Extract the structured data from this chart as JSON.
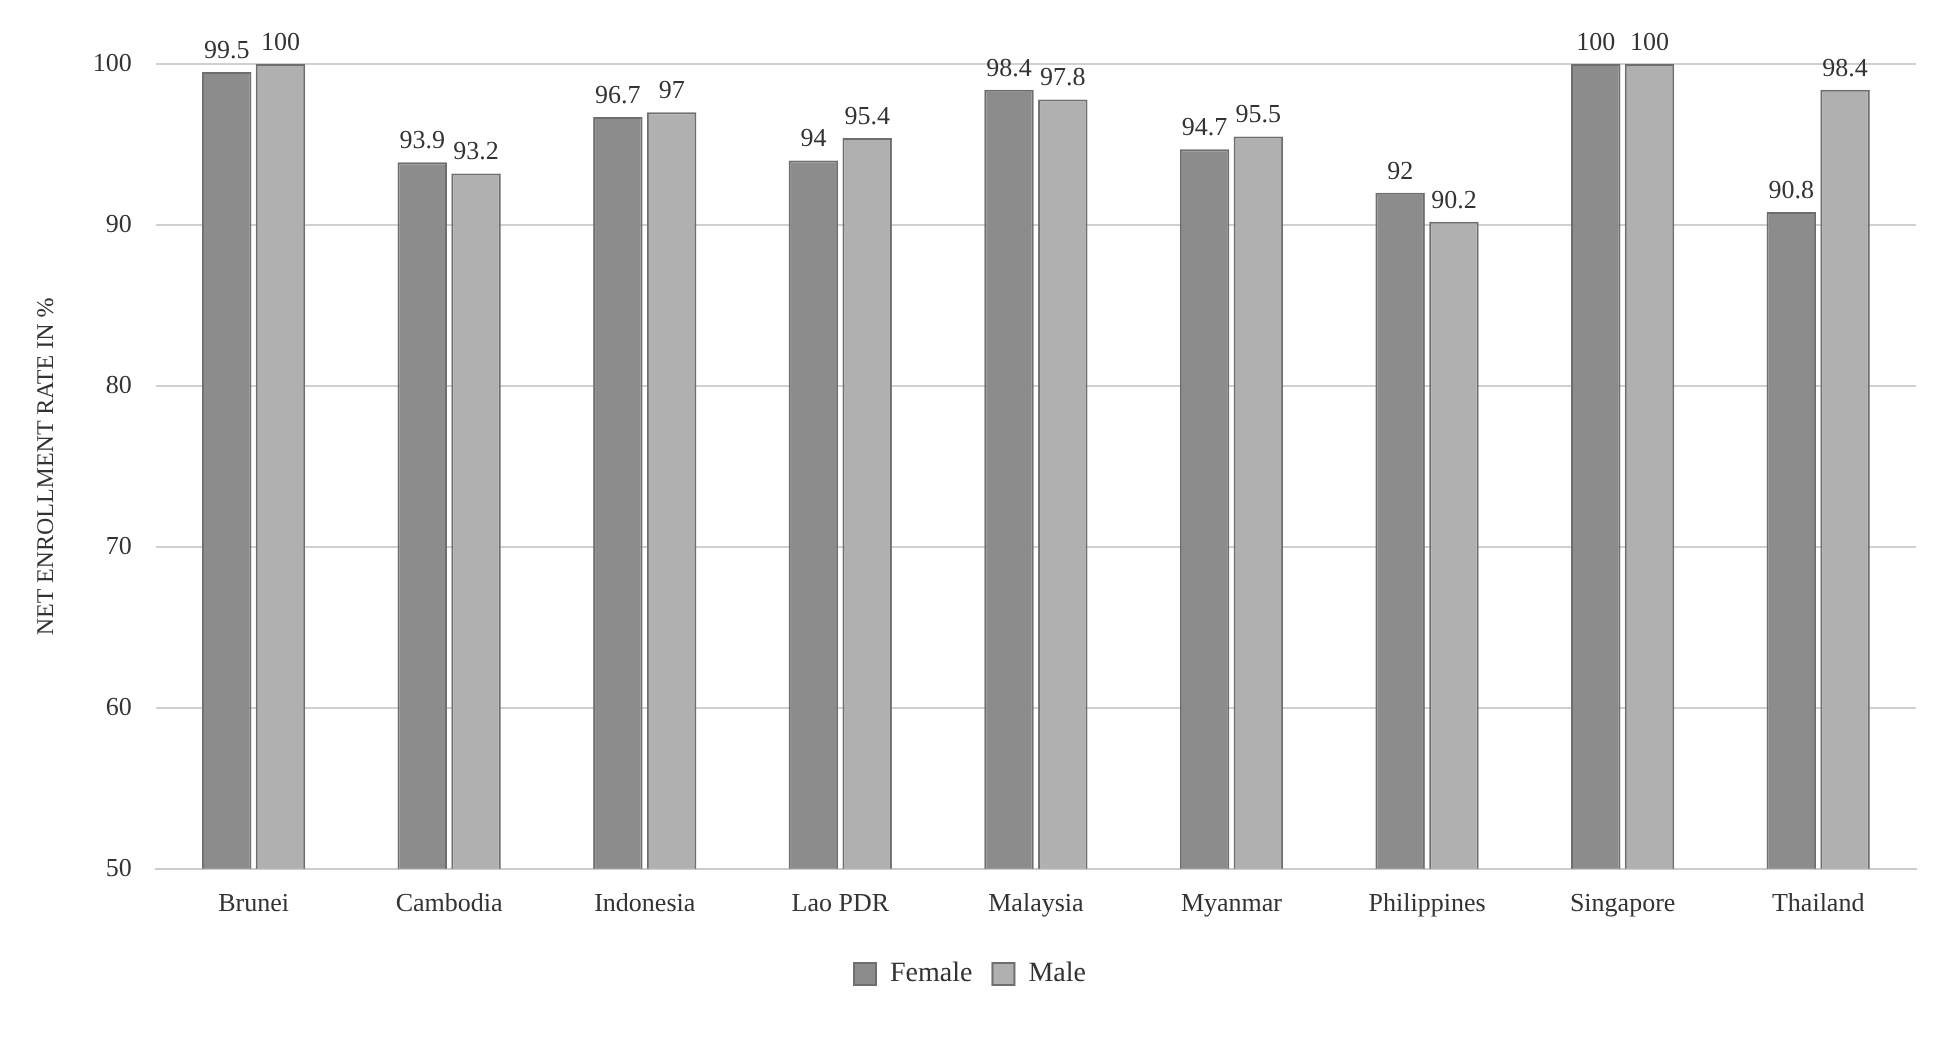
{
  "chart_data": {
    "type": "bar",
    "ylabel": "NET ENROLLMENT RATE IN %",
    "categories": [
      "Brunei",
      "Cambodia",
      "Indonesia",
      "Lao PDR",
      "Malaysia",
      "Myanmar",
      "Philippines",
      "Singapore",
      "Thailand"
    ],
    "series": [
      {
        "name": "Female",
        "color": "#8c8c8c",
        "values": [
          99.5,
          93.9,
          96.7,
          94,
          98.4,
          94.7,
          92,
          100,
          90.8
        ]
      },
      {
        "name": "Male",
        "color": "#b0b0b0",
        "values": [
          100,
          93.2,
          97,
          95.4,
          97.8,
          95.5,
          90.2,
          100,
          98.4
        ]
      }
    ],
    "ylim": [
      50,
      100
    ],
    "yticks": [
      50,
      60,
      70,
      80,
      90,
      100
    ],
    "grid": "y",
    "legend": "bottom",
    "data_labels": true
  }
}
